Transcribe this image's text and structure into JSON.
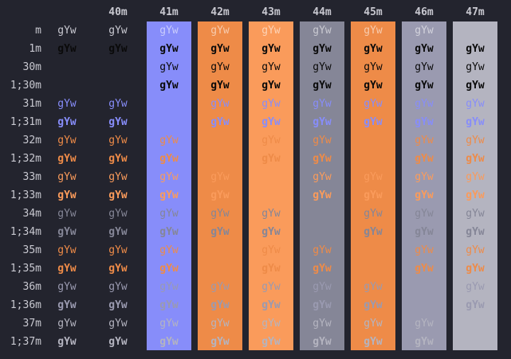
{
  "terminal": {
    "sample_text": "gYw",
    "column_headers": [
      "40m",
      "41m",
      "42m",
      "43m",
      "44m",
      "45m",
      "46m",
      "47m"
    ],
    "column_bg": [
      "",
      "#878dfa",
      "#ee8b48",
      "#fa9b5b",
      "#858697",
      "#ee8b48",
      "#9a9ab0",
      "#b4b4c0"
    ],
    "rows": [
      {
        "label": "m",
        "fg": "#c8c8d0",
        "bold": false,
        "cells": [
          "gYw",
          "gYw",
          "gYw",
          "gYw",
          "gYw",
          "gYw",
          "gYw",
          "gYw",
          ""
        ]
      },
      {
        "label": "1m",
        "fg": "#0a0a0a",
        "bold": true,
        "cells": [
          "gYw",
          "gYw",
          "gYw",
          "gYw",
          "gYw",
          "gYw",
          "gYw",
          "gYw",
          "gYw"
        ]
      },
      {
        "label": "30m",
        "fg": "#0a0a0a",
        "bold": false,
        "cells": [
          "",
          "",
          "gYw",
          "gYw",
          "gYw",
          "gYw",
          "gYw",
          "gYw",
          "gYw"
        ]
      },
      {
        "label": "1;30m",
        "fg": "#0a0a0a",
        "bold": true,
        "cells": [
          "",
          "",
          "gYw",
          "gYw",
          "gYw",
          "gYw",
          "gYw",
          "gYw",
          "gYw"
        ]
      },
      {
        "label": "31m",
        "fg": "#878dfa",
        "bold": false,
        "cells": [
          "gYw",
          "gYw",
          "",
          "gYw",
          "gYw",
          "gYw",
          "gYw",
          "gYw",
          "gYw"
        ]
      },
      {
        "label": "1;31m",
        "fg": "#878dfa",
        "bold": true,
        "cells": [
          "gYw",
          "gYw",
          "",
          "gYw",
          "gYw",
          "gYw",
          "gYw",
          "gYw",
          "gYw"
        ]
      },
      {
        "label": "32m",
        "fg": "#ee8b48",
        "bold": false,
        "cells": [
          "gYw",
          "gYw",
          "gYw",
          "",
          "gYw",
          "gYw",
          "",
          "gYw",
          "gYw"
        ]
      },
      {
        "label": "1;32m",
        "fg": "#ee8b48",
        "bold": true,
        "cells": [
          "gYw",
          "gYw",
          "gYw",
          "",
          "gYw",
          "gYw",
          "",
          "gYw",
          "gYw"
        ]
      },
      {
        "label": "33m",
        "fg": "#fa9b5b",
        "bold": false,
        "cells": [
          "gYw",
          "gYw",
          "gYw",
          "gYw",
          "",
          "gYw",
          "gYw",
          "gYw",
          "gYw"
        ]
      },
      {
        "label": "1;33m",
        "fg": "#fa9b5b",
        "bold": true,
        "cells": [
          "gYw",
          "gYw",
          "gYw",
          "gYw",
          "",
          "gYw",
          "gYw",
          "gYw",
          "gYw"
        ]
      },
      {
        "label": "34m",
        "fg": "#858697",
        "bold": false,
        "cells": [
          "gYw",
          "gYw",
          "gYw",
          "gYw",
          "gYw",
          "",
          "gYw",
          "gYw",
          "gYw"
        ]
      },
      {
        "label": "1;34m",
        "fg": "#858697",
        "bold": true,
        "cells": [
          "gYw",
          "gYw",
          "gYw",
          "gYw",
          "gYw",
          "",
          "gYw",
          "gYw",
          "gYw"
        ]
      },
      {
        "label": "35m",
        "fg": "#ee8b48",
        "bold": false,
        "cells": [
          "gYw",
          "gYw",
          "gYw",
          "",
          "gYw",
          "gYw",
          "",
          "gYw",
          "gYw"
        ]
      },
      {
        "label": "1;35m",
        "fg": "#ee8b48",
        "bold": true,
        "cells": [
          "gYw",
          "gYw",
          "gYw",
          "",
          "gYw",
          "gYw",
          "",
          "gYw",
          "gYw"
        ]
      },
      {
        "label": "36m",
        "fg": "#9a9ab0",
        "bold": false,
        "cells": [
          "gYw",
          "gYw",
          "gYw",
          "gYw",
          "gYw",
          "gYw",
          "gYw",
          "",
          "gYw"
        ]
      },
      {
        "label": "1;36m",
        "fg": "#9a9ab0",
        "bold": true,
        "cells": [
          "gYw",
          "gYw",
          "gYw",
          "gYw",
          "gYw",
          "gYw",
          "gYw",
          "",
          "gYw"
        ]
      },
      {
        "label": "37m",
        "fg": "#b4b4c0",
        "bold": false,
        "cells": [
          "gYw",
          "gYw",
          "gYw",
          "gYw",
          "gYw",
          "gYw",
          "gYw",
          "gYw",
          ""
        ]
      },
      {
        "label": "1;37m",
        "fg": "#b4b4c0",
        "bold": true,
        "cells": [
          "gYw",
          "gYw",
          "gYw",
          "gYw",
          "gYw",
          "gYw",
          "gYw",
          "gYw",
          ""
        ]
      }
    ]
  }
}
